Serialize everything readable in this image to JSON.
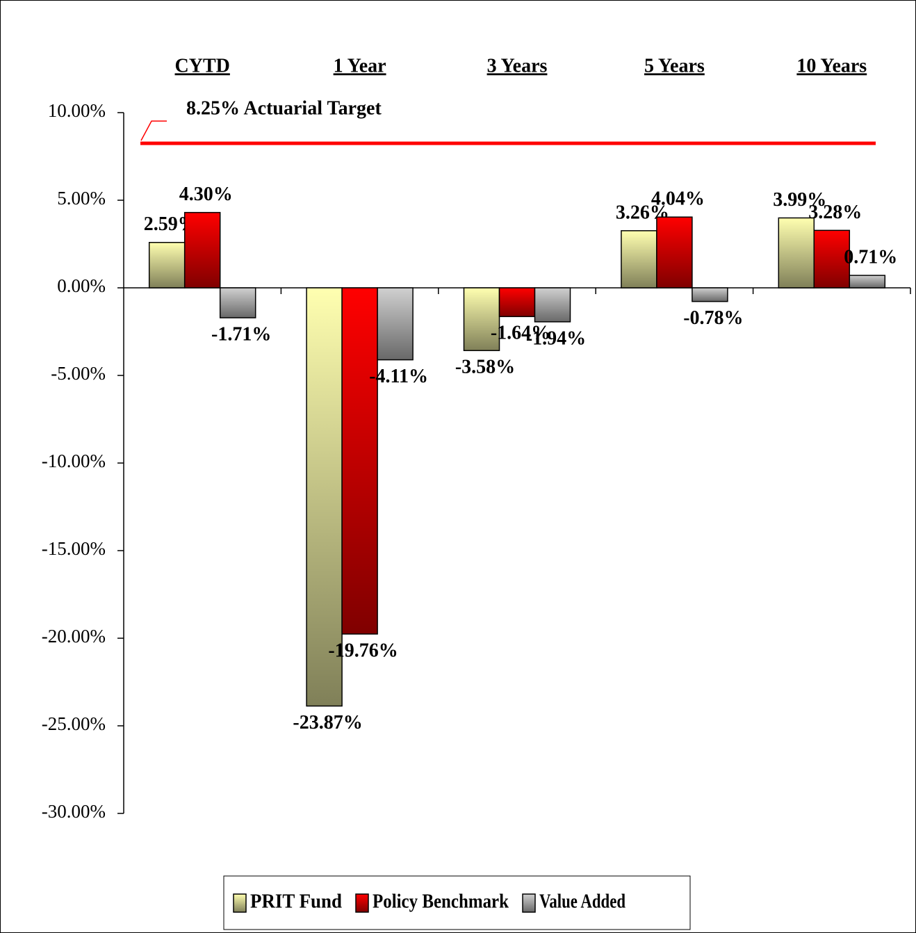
{
  "chart_data": {
    "type": "bar",
    "categories": [
      "CYTD",
      "1 Year",
      "3 Years",
      "5 Years",
      "10 Years"
    ],
    "series": [
      {
        "name": "PRIT Fund",
        "color": "#ffffb0",
        "values": [
          2.59,
          -23.87,
          -3.58,
          3.26,
          3.99
        ],
        "value_labels": [
          "2.59%",
          "-23.87%",
          "-3.58%",
          "3.26%",
          "3.99%"
        ]
      },
      {
        "name": "Policy Benchmark",
        "color": "#ff0000",
        "values": [
          4.3,
          -19.76,
          -1.64,
          4.04,
          3.28
        ],
        "value_labels": [
          "4.30%",
          "-19.76%",
          "-1.64%",
          "4.04%",
          "3.28%"
        ]
      },
      {
        "name": "Value Added",
        "color": "#d0d0d0",
        "values": [
          -1.71,
          -4.11,
          -1.94,
          -0.78,
          0.71
        ],
        "value_labels": [
          "-1.71%",
          "-4.11%",
          "-1.94%",
          "-0.78%",
          "0.71%"
        ]
      }
    ],
    "target": {
      "value": 8.25,
      "label": "8.25% Actuarial Target",
      "color": "#ff0000"
    },
    "ylim": [
      -30,
      10
    ],
    "yticks": [
      {
        "value": -30,
        "label": "-30.00%"
      },
      {
        "value": -25,
        "label": "-25.00%"
      },
      {
        "value": -20,
        "label": "-20.00%"
      },
      {
        "value": -15,
        "label": "-15.00%"
      },
      {
        "value": -10,
        "label": "-10.00%"
      },
      {
        "value": -5,
        "label": "-5.00%"
      },
      {
        "value": 0,
        "label": "0.00%"
      },
      {
        "value": 5,
        "label": "5.00%"
      },
      {
        "value": 10,
        "label": "10.00%"
      }
    ],
    "legend": "bottom"
  }
}
